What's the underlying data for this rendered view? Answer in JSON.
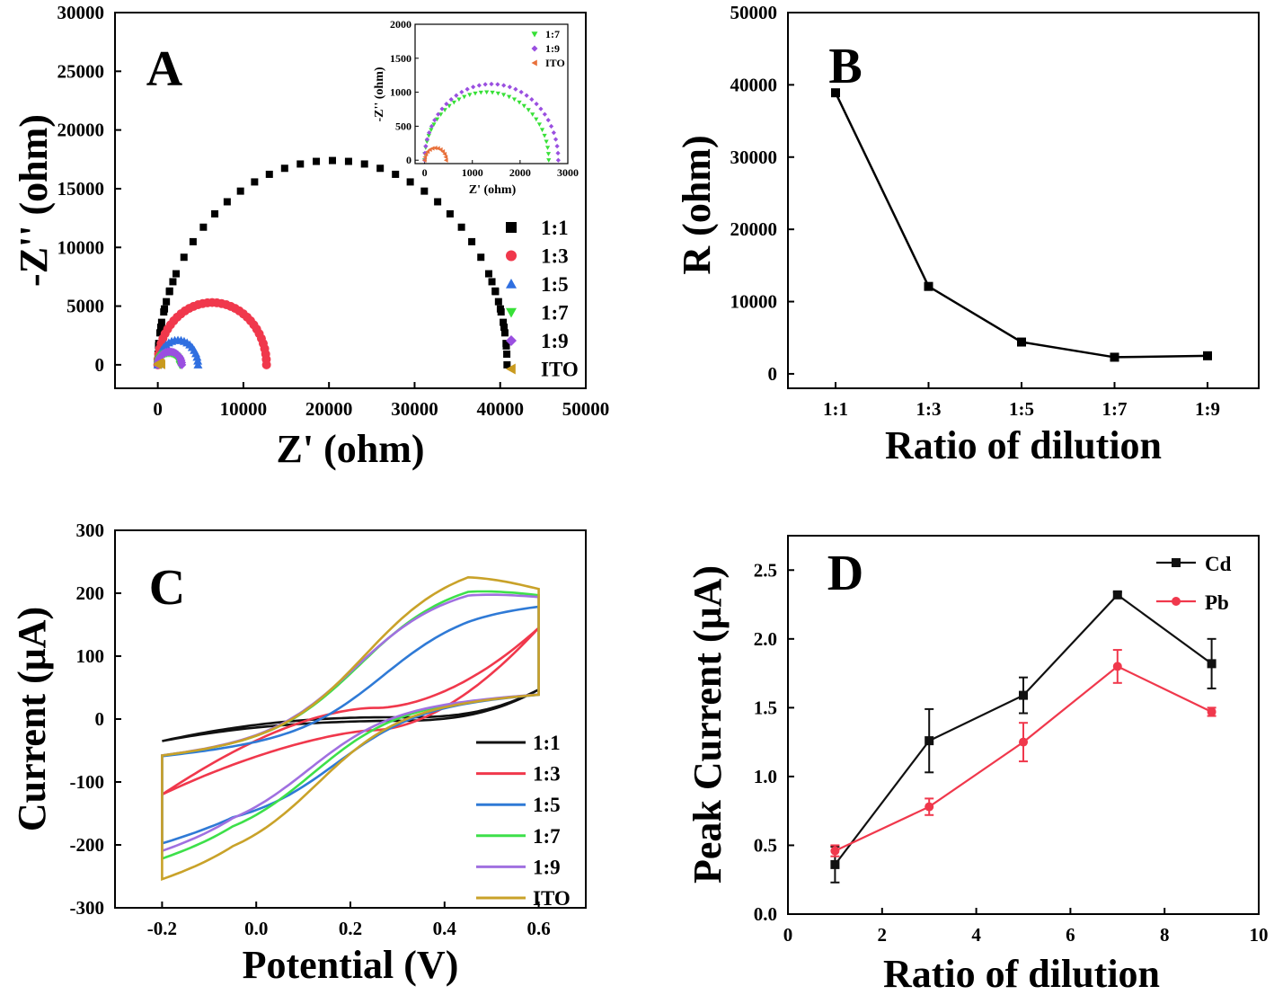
{
  "chart_data": [
    {
      "panel": "A",
      "type": "scatter",
      "xlabel": "Z' (ohm)",
      "ylabel": "-Z'' (ohm)",
      "xlim": [
        -5000,
        50000
      ],
      "ylim": [
        -2000,
        30000
      ],
      "xticks": [
        "0",
        "10000",
        "20000",
        "30000",
        "40000",
        "50000"
      ],
      "yticks": [
        "0",
        "5000",
        "10000",
        "15000",
        "20000",
        "25000",
        "30000"
      ],
      "legend_position": "right",
      "series": [
        {
          "name": "1:1",
          "color": "#000000",
          "marker": "square",
          "x0": 0,
          "x1": 40800,
          "peak": 17400
        },
        {
          "name": "1:3",
          "color": "#f0384c",
          "marker": "circle",
          "x0": 0,
          "x1": 12700,
          "peak": 5300
        },
        {
          "name": "1:5",
          "color": "#2f6fe0",
          "marker": "triangle-up",
          "x0": 0,
          "x1": 4700,
          "peak": 2100
        },
        {
          "name": "1:7",
          "color": "#37e037",
          "marker": "triangle-down",
          "x0": 0,
          "x1": 2600,
          "peak": 1000
        },
        {
          "name": "1:9",
          "color": "#9a4fe0",
          "marker": "diamond",
          "x0": 0,
          "x1": 2800,
          "peak": 1120
        },
        {
          "name": "ITO",
          "color": "#c99a1e",
          "marker": "triangle-left",
          "x0": 0,
          "x1": 450,
          "peak": 180
        }
      ],
      "inset": {
        "xlabel": "Z' (ohm)",
        "ylabel": "-Z'' (ohm)",
        "xlim": [
          -200,
          3000
        ],
        "ylim": [
          -50,
          2000
        ],
        "xticks": [
          "0",
          "1000",
          "2000",
          "3000"
        ],
        "yticks": [
          "0",
          "500",
          "1000",
          "1500",
          "2000"
        ],
        "legend": [
          {
            "name": "1:7",
            "color": "#37e037",
            "marker": "triangle-down"
          },
          {
            "name": "1:9",
            "color": "#9a4fe0",
            "marker": "diamond"
          },
          {
            "name": "ITO",
            "color": "#e8703a",
            "marker": "triangle-left"
          }
        ]
      }
    },
    {
      "panel": "B",
      "type": "line",
      "xlabel": "Ratio of dilution",
      "ylabel": "R (ohm)",
      "categories": [
        "1:1",
        "1:3",
        "1:5",
        "1:7",
        "1:9"
      ],
      "values": [
        38900,
        12100,
        4400,
        2300,
        2500
      ],
      "ylim": [
        -2000,
        50000
      ],
      "yticks": [
        "0",
        "10000",
        "20000",
        "30000",
        "40000",
        "50000"
      ]
    },
    {
      "panel": "C",
      "type": "line",
      "xlabel": "Potential (V)",
      "ylabel": "Current (μA)",
      "xlim": [
        -0.3,
        0.7
      ],
      "ylim": [
        -300,
        300
      ],
      "xticks": [
        "-0.2",
        "0.0",
        "0.2",
        "0.4",
        "0.6"
      ],
      "yticks": [
        "-300",
        "-200",
        "-100",
        "0",
        "100",
        "200",
        "300"
      ],
      "legend_position": "bottom-right",
      "series": [
        {
          "name": "1:1",
          "color": "#111111",
          "x_range": [
            -0.2,
            0.6
          ],
          "i_min": -35,
          "i_max": 47,
          "peak_a": 0,
          "peak_c": 0,
          "cross": 0.3
        },
        {
          "name": "1:3",
          "color": "#f0384c",
          "x_range": [
            -0.2,
            0.6
          ],
          "i_min": -120,
          "i_max": 145,
          "peak_a": 0,
          "peak_c": 0,
          "cross": 0.25
        },
        {
          "name": "1:5",
          "color": "#2f7ad6",
          "x_range": [
            -0.2,
            0.6
          ],
          "i_min": -178,
          "i_max": 188,
          "peak_a": 188,
          "peak_c": -178,
          "cross": 0.22
        },
        {
          "name": "1:7",
          "color": "#3de04a",
          "x_range": [
            -0.2,
            0.6
          ],
          "i_min": -205,
          "i_max": 230,
          "peak_a": 230,
          "peak_c": -205,
          "cross": 0.17
        },
        {
          "name": "1:9",
          "color": "#a070e0",
          "x_range": [
            -0.2,
            0.6
          ],
          "i_min": -193,
          "i_max": 222,
          "peak_a": 222,
          "peak_c": -193,
          "cross": 0.16
        },
        {
          "name": "ITO",
          "color": "#c9a229",
          "x_range": [
            -0.2,
            0.6
          ],
          "i_min": -238,
          "i_max": 257,
          "peak_a": 257,
          "peak_c": -238,
          "cross": 0.18
        }
      ]
    },
    {
      "panel": "D",
      "type": "line",
      "xlabel": "Ratio of dilution",
      "ylabel": "Peak Current (μA)",
      "xlim": [
        0,
        10
      ],
      "ylim": [
        0.0,
        2.75
      ],
      "xticks": [
        "0",
        "2",
        "4",
        "6",
        "8",
        "10"
      ],
      "yticks": [
        "0.0",
        "0.5",
        "1.0",
        "1.5",
        "2.0",
        "2.5"
      ],
      "legend_position": "top-right",
      "x": [
        1,
        3,
        5,
        7,
        9
      ],
      "series": [
        {
          "name": "Cd",
          "color": "#111111",
          "marker": "square",
          "values": [
            0.36,
            1.26,
            1.59,
            2.32,
            1.82
          ],
          "errors": [
            0.13,
            0.23,
            0.13,
            0.02,
            0.18
          ]
        },
        {
          "name": "Pb",
          "color": "#f0384c",
          "marker": "circle",
          "values": [
            0.46,
            0.78,
            1.25,
            1.8,
            1.47
          ],
          "errors": [
            0.04,
            0.06,
            0.14,
            0.12,
            0.03
          ]
        }
      ]
    }
  ]
}
